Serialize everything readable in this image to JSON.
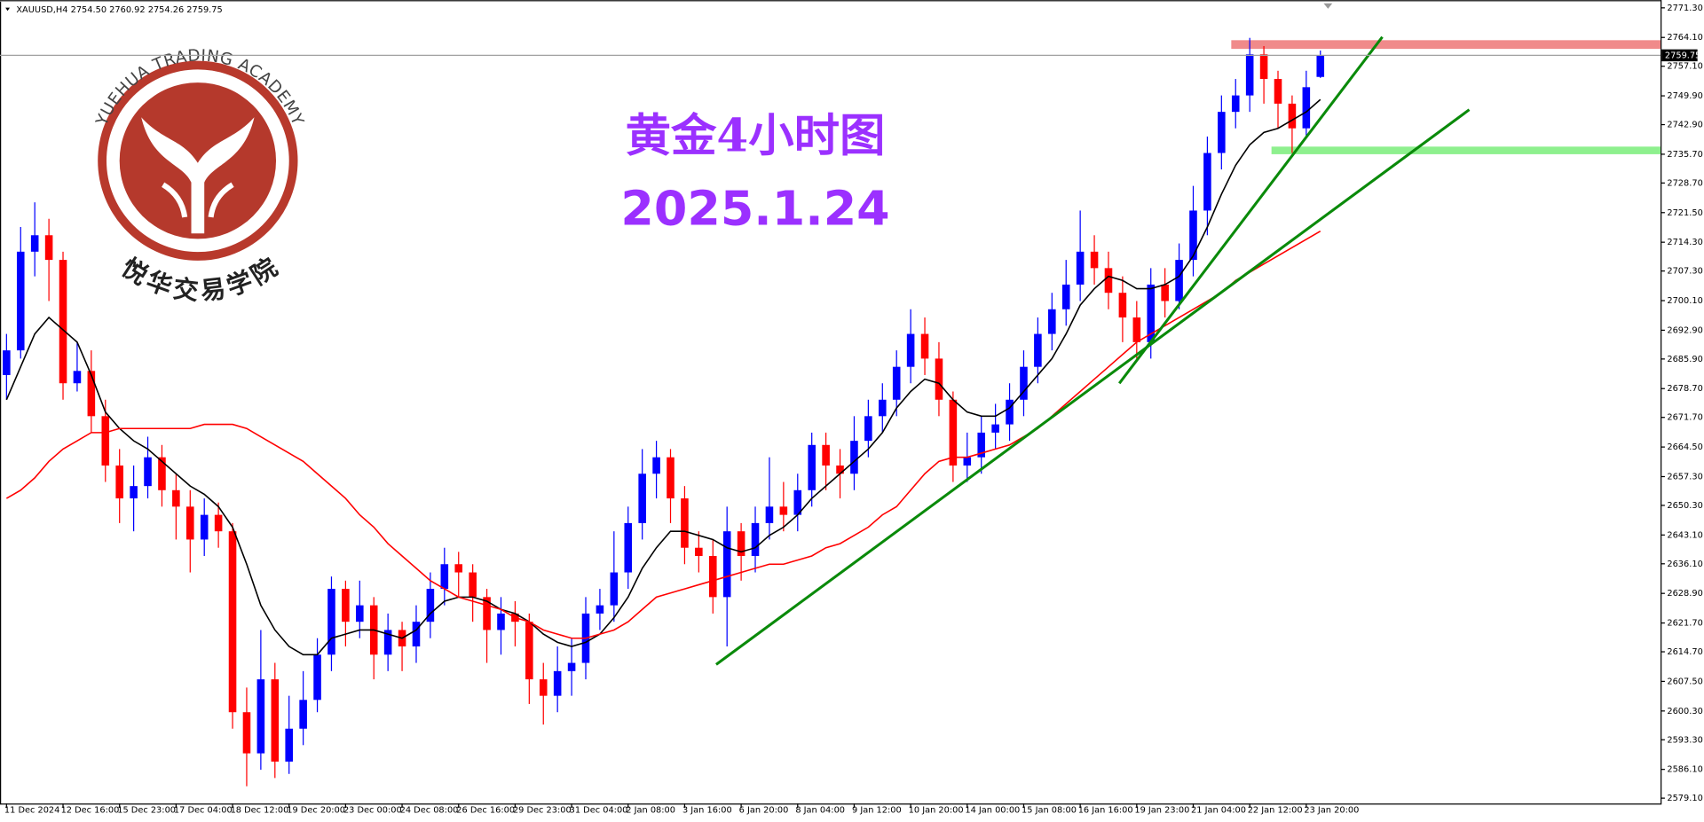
{
  "header": "XAUUSD,H4  2754.50 2760.92 2754.26 2759.75",
  "logo": {
    "text_en": "YUEHUA TRADING ACADEMY",
    "text_cn": "悦华交易学院"
  },
  "chart_data": {
    "type": "candlestick",
    "title": "黄金4小时图",
    "subtitle": "2025.1.24",
    "categories": [
      "11 Dec 2024",
      null,
      null,
      null,
      "12 Dec 16:00",
      null,
      null,
      null,
      "15 Dec 23:00",
      null,
      null,
      null,
      "17 Dec 04:00",
      null,
      null,
      null,
      "18 Dec 12:00",
      null,
      null,
      null,
      "19 Dec 20:00",
      null,
      null,
      null,
      "23 Dec 00:00",
      null,
      null,
      null,
      "24 Dec 08:00",
      null,
      null,
      null,
      "26 Dec 16:00",
      null,
      null,
      null,
      "29 Dec 23:00",
      null,
      null,
      null,
      "31 Dec 04:00",
      null,
      null,
      null,
      "2 Jan 08:00",
      null,
      null,
      null,
      "3 Jan 16:00",
      null,
      null,
      null,
      "6 Jan 20:00",
      null,
      null,
      null,
      "8 Jan 04:00",
      null,
      null,
      null,
      "9 Jan 12:00",
      null,
      null,
      null,
      "10 Jan 20:00",
      null,
      null,
      null,
      "14 Jan 00:00",
      null,
      null,
      null,
      "15 Jan 08:00",
      null,
      null,
      null,
      "16 Jan 16:00",
      null,
      null,
      null,
      "19 Jan 23:00",
      null,
      null,
      null,
      "21 Jan 04:00",
      null,
      null,
      null,
      "22 Jan 12:00",
      null,
      null,
      null,
      "23 Jan 20:00",
      null
    ],
    "open": [
      2682,
      2688,
      2712,
      2716,
      2710,
      2680,
      2683,
      2672,
      2660,
      2652,
      2655,
      2662,
      2654,
      2650,
      2642,
      2648,
      2644,
      2600,
      2590,
      2608,
      2588,
      2596,
      2603,
      2614,
      2630,
      2622,
      2626,
      2614,
      2620,
      2616,
      2622,
      2630,
      2636,
      2634,
      2628,
      2620,
      2624,
      2622,
      2608,
      2604,
      2610,
      2612,
      2624,
      2626,
      2634,
      2646,
      2658,
      2662,
      2652,
      2640,
      2638,
      2628,
      2644,
      2638,
      2646,
      2650,
      2648,
      2654,
      2665,
      2660,
      2658,
      2666,
      2672,
      2676,
      2684,
      2692,
      2686,
      2676,
      2660,
      2662,
      2668,
      2670,
      2676,
      2684,
      2692,
      2698,
      2704,
      2712,
      2708,
      2702,
      2696,
      2690,
      2704,
      2700,
      2710,
      2722,
      2736,
      2746,
      2750,
      2760,
      2754,
      2748,
      2742,
      2754.5
    ],
    "high": [
      2692,
      2718,
      2724,
      2720,
      2712,
      2690,
      2688,
      2676,
      2664,
      2660,
      2667,
      2665,
      2658,
      2654,
      2652,
      2651,
      2646,
      2606,
      2620,
      2612,
      2604,
      2610,
      2618,
      2633,
      2632,
      2632,
      2628,
      2624,
      2622,
      2626,
      2634,
      2640,
      2639,
      2636,
      2630,
      2628,
      2627,
      2624,
      2612,
      2616,
      2618,
      2628,
      2630,
      2644,
      2650,
      2664,
      2666,
      2664,
      2655,
      2644,
      2642,
      2650,
      2646,
      2650,
      2662,
      2656,
      2658,
      2668,
      2668,
      2664,
      2672,
      2676,
      2680,
      2688,
      2698,
      2696,
      2690,
      2678,
      2668,
      2672,
      2675,
      2680,
      2688,
      2696,
      2702,
      2710,
      2722,
      2716,
      2712,
      2706,
      2700,
      2708,
      2708,
      2714,
      2728,
      2740,
      2750,
      2754,
      2764,
      2762,
      2756,
      2750,
      2756,
      2760.92
    ],
    "low": [
      2676,
      2686,
      2706,
      2700,
      2676,
      2678,
      2668,
      2656,
      2646,
      2644,
      2652,
      2650,
      2642,
      2634,
      2638,
      2640,
      2596,
      2582,
      2586,
      2584,
      2585,
      2592,
      2600,
      2610,
      2616,
      2618,
      2608,
      2610,
      2610,
      2612,
      2618,
      2626,
      2628,
      2622,
      2612,
      2614,
      2616,
      2602,
      2597,
      2600,
      2604,
      2608,
      2620,
      2622,
      2630,
      2642,
      2652,
      2646,
      2636,
      2634,
      2624,
      2616,
      2632,
      2634,
      2642,
      2644,
      2644,
      2650,
      2654,
      2652,
      2654,
      2662,
      2668,
      2672,
      2680,
      2682,
      2672,
      2656,
      2656,
      2658,
      2664,
      2666,
      2672,
      2680,
      2688,
      2694,
      2700,
      2704,
      2698,
      2690,
      2686,
      2686,
      2696,
      2698,
      2706,
      2716,
      2732,
      2742,
      2746,
      2748,
      2742,
      2736,
      2740,
      2754.26
    ],
    "close": [
      2688,
      2712,
      2716,
      2710,
      2680,
      2683,
      2672,
      2660,
      2652,
      2655,
      2662,
      2654,
      2650,
      2642,
      2648,
      2644,
      2600,
      2590,
      2608,
      2588,
      2596,
      2603,
      2614,
      2630,
      2622,
      2626,
      2614,
      2620,
      2616,
      2622,
      2630,
      2636,
      2634,
      2628,
      2620,
      2624,
      2622,
      2608,
      2604,
      2610,
      2612,
      2624,
      2626,
      2634,
      2646,
      2658,
      2662,
      2652,
      2640,
      2638,
      2628,
      2644,
      2638,
      2646,
      2650,
      2648,
      2654,
      2665,
      2660,
      2658,
      2666,
      2672,
      2676,
      2684,
      2692,
      2686,
      2676,
      2660,
      2662,
      2668,
      2670,
      2676,
      2684,
      2692,
      2698,
      2704,
      2712,
      2708,
      2702,
      2696,
      2690,
      2704,
      2700,
      2710,
      2722,
      2736,
      2746,
      2750,
      2760,
      2754,
      2748,
      2742,
      2752,
      2759.75
    ],
    "up_color": "#0000ff",
    "down_color": "#ff0000",
    "overlays": [
      {
        "type": "line",
        "color": "#000000",
        "values": [
          2676,
          2684,
          2692,
          2696,
          2693,
          2690,
          2682,
          2673,
          2669,
          2666,
          2664,
          2661,
          2658,
          2655,
          2653,
          2650,
          2645,
          2636,
          2626,
          2620,
          2616,
          2614,
          2614,
          2618,
          2619,
          2620,
          2620,
          2619,
          2618,
          2620,
          2624,
          2627,
          2628,
          2628,
          2627,
          2625,
          2624,
          2622,
          2619,
          2617,
          2616,
          2617,
          2619,
          2623,
          2628,
          2635,
          2640,
          2644,
          2644,
          2643,
          2642,
          2640,
          2639,
          2640,
          2643,
          2645,
          2648,
          2652,
          2655,
          2658,
          2661,
          2664,
          2668,
          2674,
          2678,
          2681,
          2680,
          2676,
          2673,
          2672,
          2672,
          2674,
          2678,
          2682,
          2686,
          2692,
          2699,
          2703,
          2706,
          2705,
          2703,
          2703,
          2704,
          2706,
          2711,
          2718,
          2726,
          2733,
          2738,
          2741,
          2742,
          2744,
          2746,
          2749
        ]
      },
      {
        "type": "line",
        "color": "#ff0000",
        "values": [
          2652,
          2654,
          2657,
          2661,
          2664,
          2666,
          2668,
          2668,
          2669,
          2669,
          2669,
          2669,
          2669,
          2669,
          2670,
          2670,
          2670,
          2669,
          2667,
          2665,
          2663,
          2661,
          2658,
          2655,
          2652,
          2648,
          2645,
          2641,
          2638,
          2635,
          2632,
          2630,
          2628,
          2627,
          2626,
          2625,
          2623,
          2622,
          2620,
          2619,
          2618,
          2618,
          2619,
          2620,
          2622,
          2625,
          2628,
          2629,
          2630,
          2631,
          2632,
          2633,
          2634,
          2635,
          2636,
          2636,
          2637,
          2638,
          2640,
          2641,
          2643,
          2645,
          2648,
          2650,
          2654,
          2658,
          2661,
          2662,
          2662,
          2663,
          2664,
          2665,
          2667,
          2669,
          2672,
          2675,
          2678,
          2681,
          2684,
          2687,
          2690,
          2692,
          2694,
          2696,
          2698,
          2700,
          2702,
          2705,
          2707,
          2709,
          2711,
          2713,
          2715,
          2717
        ]
      }
    ],
    "last_price": 2759.75,
    "ylim": [
      2577.8,
      2773.2
    ],
    "yticks": [
      {
        "value": 2771.3,
        "label": "2771.30"
      },
      {
        "value": 2764.1,
        "label": "2764.10"
      },
      {
        "value": 2757.1,
        "label": "2757.10"
      },
      {
        "value": 2749.9,
        "label": "2749.90"
      },
      {
        "value": 2742.9,
        "label": "2742.90"
      },
      {
        "value": 2735.7,
        "label": "2735.70"
      },
      {
        "value": 2728.7,
        "label": "2728.70"
      },
      {
        "value": 2721.5,
        "label": "2721.50"
      },
      {
        "value": 2714.3,
        "label": "2714.30"
      },
      {
        "value": 2707.3,
        "label": "2707.30"
      },
      {
        "value": 2700.1,
        "label": "2700.10"
      },
      {
        "value": 2692.9,
        "label": "2692.90"
      },
      {
        "value": 2685.9,
        "label": "2685.90"
      },
      {
        "value": 2678.7,
        "label": "2678.70"
      },
      {
        "value": 2671.7,
        "label": "2671.70"
      },
      {
        "value": 2664.5,
        "label": "2664.50"
      },
      {
        "value": 2657.3,
        "label": "2657.30"
      },
      {
        "value": 2650.3,
        "label": "2650.30"
      },
      {
        "value": 2643.1,
        "label": "2643.10"
      },
      {
        "value": 2636.1,
        "label": "2636.10"
      },
      {
        "value": 2628.9,
        "label": "2628.90"
      },
      {
        "value": 2621.7,
        "label": "2621.70"
      },
      {
        "value": 2614.7,
        "label": "2614.70"
      },
      {
        "value": 2607.5,
        "label": "2607.50"
      },
      {
        "value": 2600.3,
        "label": "2600.30"
      },
      {
        "value": 2593.3,
        "label": "2593.30"
      },
      {
        "value": 2586.1,
        "label": "2586.10"
      },
      {
        "value": 2579.1,
        "label": "2579.10"
      }
    ]
  }
}
